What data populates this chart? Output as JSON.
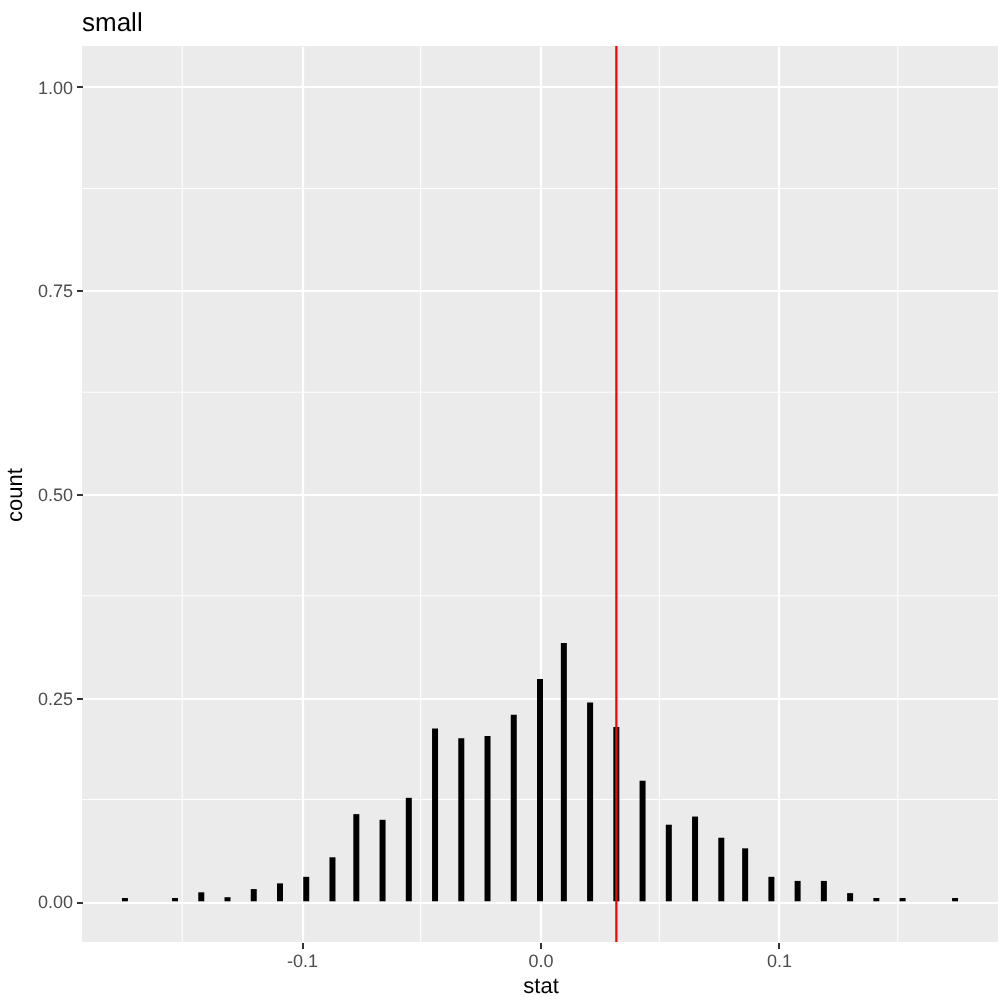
{
  "chart_data": {
    "type": "bar",
    "title": "small",
    "xlabel": "stat",
    "ylabel": "count",
    "x": [
      -0.174,
      -0.153,
      -0.142,
      -0.131,
      -0.12,
      -0.109,
      -0.098,
      -0.087,
      -0.077,
      -0.066,
      -0.055,
      -0.044,
      -0.033,
      -0.022,
      -0.011,
      0.0,
      0.01,
      0.021,
      0.032,
      0.043,
      0.054,
      0.065,
      0.076,
      0.086,
      0.097,
      0.108,
      0.119,
      0.13,
      0.141,
      0.152,
      0.174
    ],
    "series": [
      {
        "color": "#000000",
        "values": [
          0.004,
          0.004,
          0.011,
          0.005,
          0.015,
          0.022,
          0.03,
          0.054,
          0.107,
          0.1,
          0.127,
          0.212,
          0.2,
          0.203,
          0.229,
          0.273,
          0.317,
          0.244,
          0.214,
          0.148,
          0.094,
          0.104,
          0.078,
          0.065,
          0.03,
          0.025,
          0.025,
          0.01,
          0.004,
          0.004,
          0.004
        ]
      }
    ],
    "xlim": [
      -0.192,
      0.192
    ],
    "ylim": [
      -0.05,
      1.05
    ],
    "xticks": [
      {
        "value": -0.1,
        "label": "-0.1"
      },
      {
        "value": 0,
        "label": "0.0"
      },
      {
        "value": 0.1,
        "label": "0.1"
      }
    ],
    "yticks": [
      {
        "value": 0,
        "label": "0.00"
      },
      {
        "value": 0.25,
        "label": "0.25"
      },
      {
        "value": 0.5,
        "label": "0.50"
      },
      {
        "value": 0.75,
        "label": "0.75"
      },
      {
        "value": 1,
        "label": "1.00"
      }
    ],
    "grid": true,
    "ref_lines": [
      {
        "axis": "x",
        "value": 0.032,
        "color": "#ff0000"
      }
    ]
  }
}
